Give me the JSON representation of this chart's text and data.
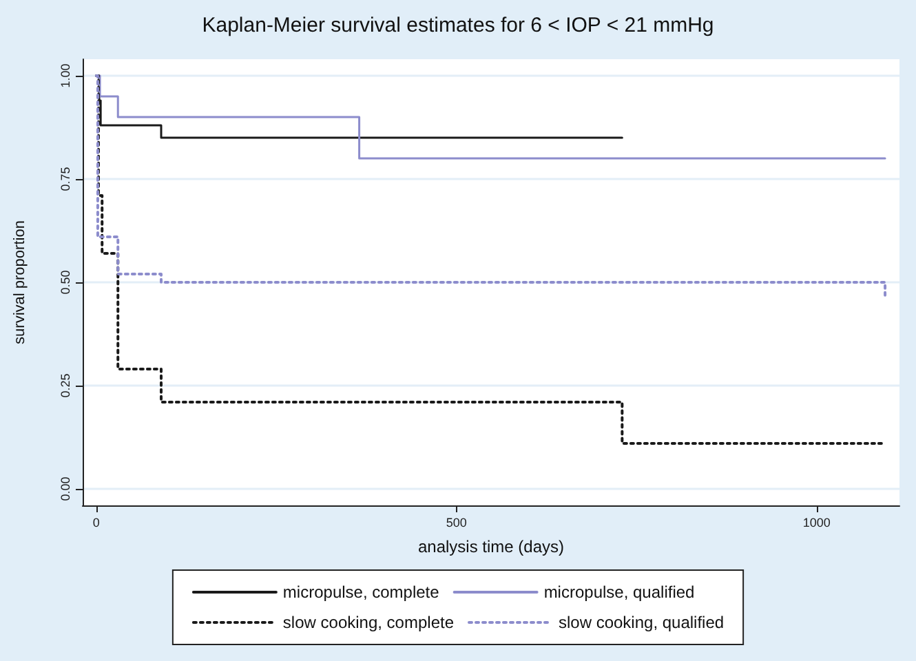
{
  "chart_data": {
    "type": "step",
    "title": "Kaplan-Meier survival estimates for 6 < IOP < 21 mmHg",
    "xlabel": "analysis time (days)",
    "ylabel": "survival proportion",
    "xlim": [
      -19,
      1115
    ],
    "ylim": [
      -0.04,
      1.04
    ],
    "xticks": [
      0,
      500,
      1000
    ],
    "yticks": [
      {
        "value": 0,
        "label": "0.00"
      },
      {
        "value": 0.25,
        "label": "0.25"
      },
      {
        "value": 0.5,
        "label": "0.50"
      },
      {
        "value": 0.75,
        "label": "0.75"
      },
      {
        "value": 1,
        "label": "1.00"
      }
    ],
    "grid": "y",
    "legend": "bottom",
    "marker": "none",
    "series": [
      {
        "name": "micropulse, complete",
        "color": "#1a1a1a",
        "line_style": "solid",
        "x": [
          0,
          4,
          6,
          90,
          730
        ],
        "values": [
          1,
          0.94,
          0.88,
          0.85,
          0.85
        ]
      },
      {
        "name": "micropulse, qualified",
        "color": "#8c8ccc",
        "line_style": "solid",
        "x": [
          0,
          5,
          30,
          365,
          1095
        ],
        "values": [
          1,
          0.95,
          0.9,
          0.8,
          0.8
        ]
      },
      {
        "name": "slow cooking, complete",
        "color": "#1a1a1a",
        "line_style": "dotted",
        "x": [
          0,
          3,
          8,
          30,
          90,
          730,
          1090
        ],
        "values": [
          1,
          0.71,
          0.57,
          0.29,
          0.21,
          0.11,
          0.11
        ]
      },
      {
        "name": "slow cooking, qualified",
        "color": "#8c8ccc",
        "line_style": "dotted",
        "x": [
          0,
          2,
          30,
          90,
          1095
        ],
        "values": [
          1,
          0.61,
          0.52,
          0.5,
          0.46
        ]
      }
    ]
  }
}
